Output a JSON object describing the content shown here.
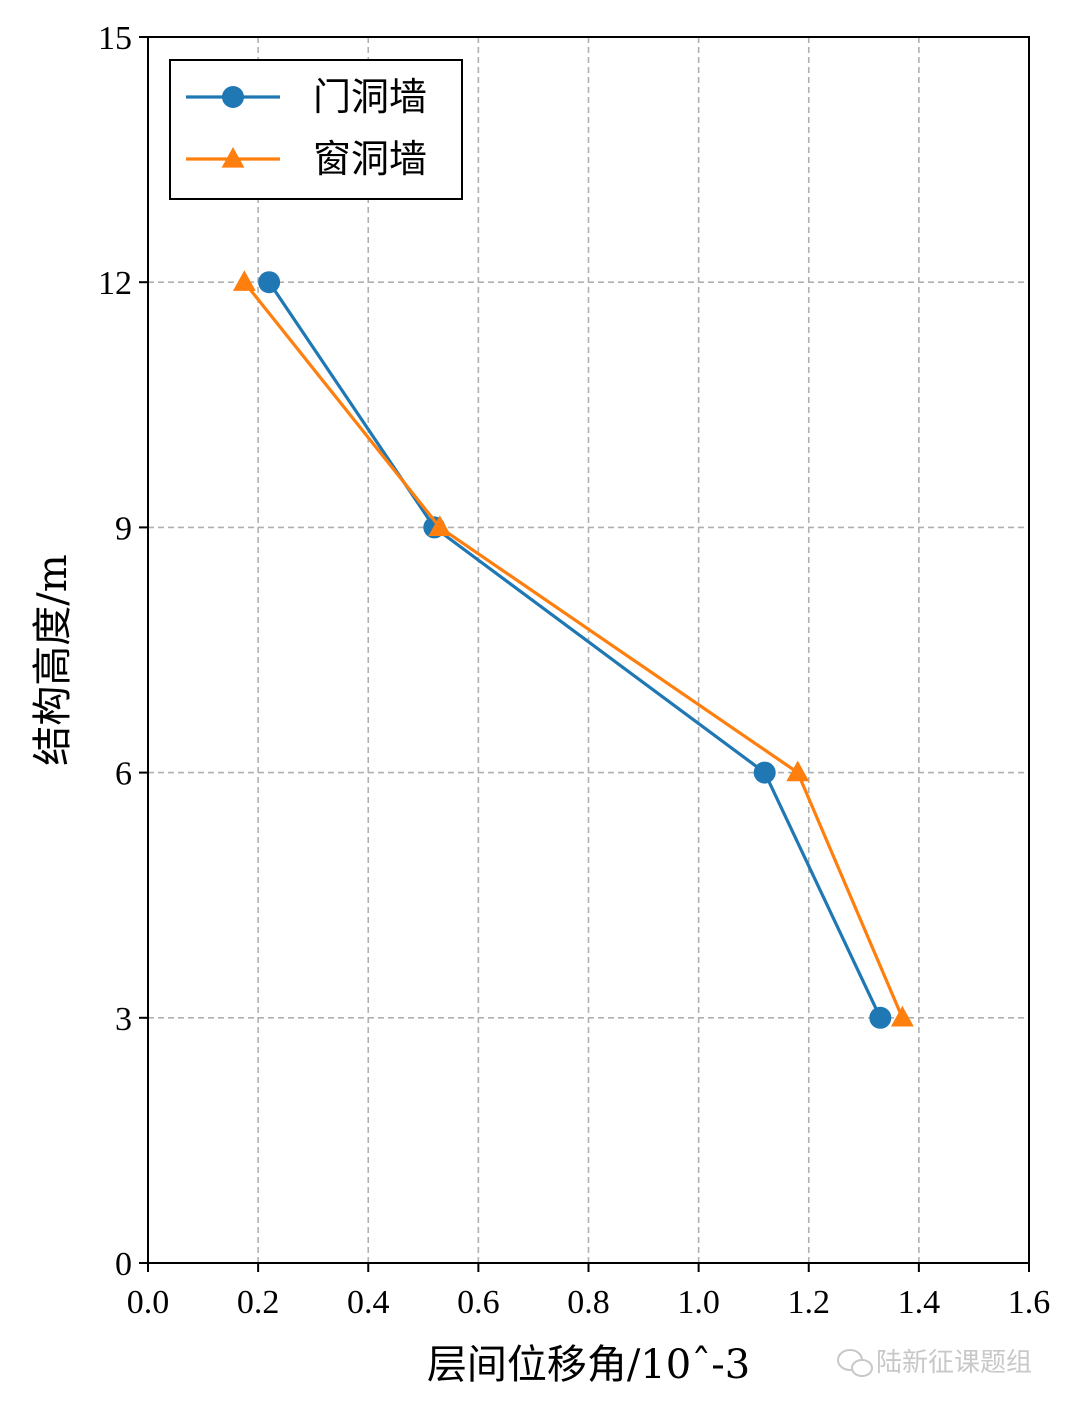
{
  "chart_data": {
    "type": "line",
    "title": "",
    "xlabel": "层间位移角/10ˆ-3",
    "ylabel": "结构高度/m",
    "xlim": [
      0.0,
      1.6
    ],
    "ylim": [
      0,
      15
    ],
    "x_ticks": [
      0.0,
      0.2,
      0.4,
      0.6,
      0.8,
      1.0,
      1.2,
      1.4,
      1.6
    ],
    "x_tick_labels": [
      "0.0",
      "0.2",
      "0.4",
      "0.6",
      "0.8",
      "1.0",
      "1.2",
      "1.4",
      "1.6"
    ],
    "y_ticks": [
      0,
      3,
      6,
      9,
      12,
      15
    ],
    "y_tick_labels": [
      "0",
      "3",
      "6",
      "9",
      "12",
      "15"
    ],
    "grid": true,
    "legend_position": "top-left",
    "series": [
      {
        "name": "门洞墙",
        "color": "#1f77b4",
        "marker": "circle",
        "x": [
          1.33,
          1.12,
          0.52,
          0.22
        ],
        "y": [
          3,
          6,
          9,
          12
        ]
      },
      {
        "name": "窗洞墙",
        "color": "#ff7f0e",
        "marker": "triangle",
        "x": [
          1.37,
          1.18,
          0.53,
          0.175
        ],
        "y": [
          3,
          6,
          9,
          12
        ]
      }
    ]
  },
  "watermark": {
    "text": "陆新征课题组",
    "icon": "wechat-icon"
  }
}
